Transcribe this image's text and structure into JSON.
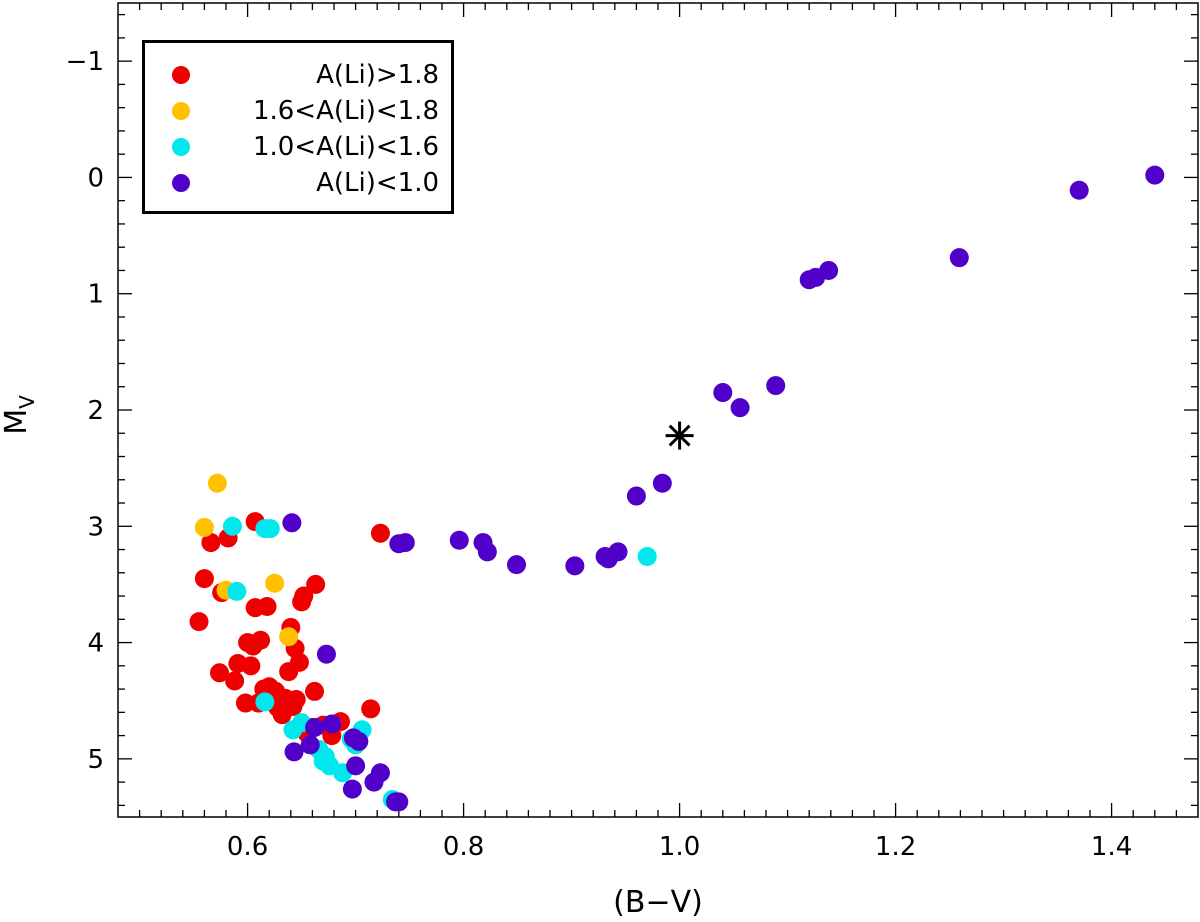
{
  "chart_data": {
    "type": "scatter",
    "xlabel": "(B−V)",
    "ylabel": "M",
    "ylabel_sub": "V",
    "xlim": [
      0.48,
      1.48
    ],
    "ylim": [
      5.5,
      -1.5
    ],
    "y_inverted": true,
    "x_ticks": [
      "0.6",
      "0.8",
      "1.0",
      "1.2",
      "1.4"
    ],
    "x_tick_values": [
      0.6,
      0.8,
      1.0,
      1.2,
      1.4
    ],
    "y_ticks": [
      "−1",
      "0",
      "1",
      "2",
      "3",
      "4",
      "5"
    ],
    "y_tick_values": [
      -1,
      0,
      1,
      2,
      3,
      4,
      5
    ],
    "legend": [
      {
        "label": "A(Li)>1.8",
        "color": "#ee0000"
      },
      {
        "label": "1.6<A(Li)<1.8",
        "color": "#ffc000"
      },
      {
        "label": "1.0<A(Li)<1.6",
        "color": "#00e8ec"
      },
      {
        "label": "A(Li)<1.0",
        "color": "#5000c8"
      }
    ],
    "series": [
      {
        "name": "A(Li)>1.8",
        "color": "#ee0000",
        "points": [
          [
            0.555,
            3.82
          ],
          [
            0.56,
            3.45
          ],
          [
            0.566,
            3.14
          ],
          [
            0.576,
            3.57
          ],
          [
            0.574,
            4.26
          ],
          [
            0.582,
            3.1
          ],
          [
            0.588,
            4.33
          ],
          [
            0.591,
            4.18
          ],
          [
            0.598,
            4.52
          ],
          [
            0.6,
            4.0
          ],
          [
            0.603,
            4.2
          ],
          [
            0.605,
            4.03
          ],
          [
            0.607,
            3.7
          ],
          [
            0.607,
            2.96
          ],
          [
            0.61,
            4.52
          ],
          [
            0.612,
            3.98
          ],
          [
            0.615,
            4.4
          ],
          [
            0.618,
            3.69
          ],
          [
            0.62,
            4.38
          ],
          [
            0.622,
            4.48
          ],
          [
            0.626,
            4.42
          ],
          [
            0.628,
            4.56
          ],
          [
            0.632,
            4.62
          ],
          [
            0.634,
            4.5
          ],
          [
            0.635,
            4.48
          ],
          [
            0.638,
            4.25
          ],
          [
            0.64,
            3.87
          ],
          [
            0.642,
            4.55
          ],
          [
            0.644,
            4.05
          ],
          [
            0.645,
            4.49
          ],
          [
            0.648,
            4.17
          ],
          [
            0.65,
            3.65
          ],
          [
            0.652,
            3.6
          ],
          [
            0.655,
            4.78
          ],
          [
            0.66,
            4.73
          ],
          [
            0.662,
            4.42
          ],
          [
            0.663,
            3.5
          ],
          [
            0.67,
            4.71
          ],
          [
            0.678,
            4.8
          ],
          [
            0.686,
            4.68
          ],
          [
            0.714,
            4.57
          ],
          [
            0.723,
            3.06
          ]
        ]
      },
      {
        "name": "1.6<A(Li)<1.8",
        "color": "#ffc000",
        "points": [
          [
            0.56,
            3.01
          ],
          [
            0.572,
            2.63
          ],
          [
            0.58,
            3.55
          ],
          [
            0.625,
            3.49
          ],
          [
            0.638,
            3.95
          ]
        ]
      },
      {
        "name": "1.0<A(Li)<1.6",
        "color": "#00e8ec",
        "points": [
          [
            0.586,
            3.0
          ],
          [
            0.59,
            3.56
          ],
          [
            0.616,
            3.02
          ],
          [
            0.621,
            3.02
          ],
          [
            0.616,
            4.51
          ],
          [
            0.642,
            4.75
          ],
          [
            0.65,
            4.69
          ],
          [
            0.666,
            4.92
          ],
          [
            0.672,
            4.98
          ],
          [
            0.67,
            5.02
          ],
          [
            0.676,
            5.06
          ],
          [
            0.688,
            5.12
          ],
          [
            0.696,
            4.83
          ],
          [
            0.7,
            4.88
          ],
          [
            0.706,
            4.75
          ],
          [
            0.734,
            5.35
          ],
          [
            0.97,
            3.26
          ]
        ]
      },
      {
        "name": "A(Li)<1.0",
        "color": "#5000c8",
        "points": [
          [
            0.641,
            2.97
          ],
          [
            0.643,
            4.94
          ],
          [
            0.658,
            4.88
          ],
          [
            0.662,
            4.73
          ],
          [
            0.673,
            4.1
          ],
          [
            0.678,
            4.7
          ],
          [
            0.697,
            5.26
          ],
          [
            0.698,
            4.82
          ],
          [
            0.7,
            5.06
          ],
          [
            0.703,
            4.85
          ],
          [
            0.717,
            5.2
          ],
          [
            0.723,
            5.12
          ],
          [
            0.737,
            5.37
          ],
          [
            0.74,
            5.37
          ],
          [
            0.74,
            3.15
          ],
          [
            0.746,
            3.14
          ],
          [
            0.796,
            3.12
          ],
          [
            0.818,
            3.14
          ],
          [
            0.822,
            3.22
          ],
          [
            0.849,
            3.33
          ],
          [
            0.903,
            3.34
          ],
          [
            0.931,
            3.26
          ],
          [
            0.934,
            3.28
          ],
          [
            0.943,
            3.22
          ],
          [
            0.96,
            2.74
          ],
          [
            0.984,
            2.63
          ],
          [
            1.04,
            1.85
          ],
          [
            1.056,
            1.98
          ],
          [
            1.089,
            1.79
          ],
          [
            1.12,
            0.88
          ],
          [
            1.126,
            0.86
          ],
          [
            1.138,
            0.8
          ],
          [
            1.259,
            0.69
          ],
          [
            1.37,
            0.11
          ],
          [
            1.44,
            -0.02
          ]
        ]
      }
    ],
    "annotations": [
      {
        "type": "asterisk",
        "x": 1.0,
        "y": 2.22
      }
    ]
  }
}
